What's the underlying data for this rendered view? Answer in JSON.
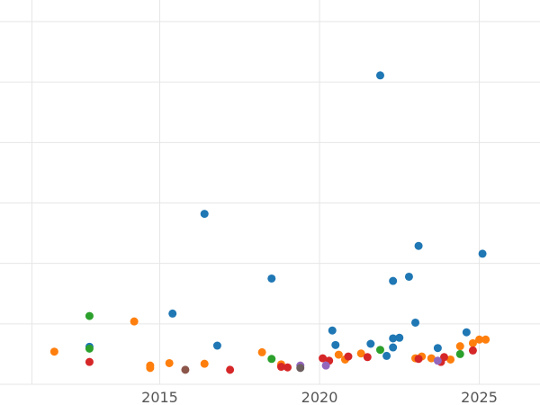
{
  "chart_data": {
    "type": "scatter",
    "title": "",
    "xlabel": "",
    "ylabel": "",
    "x_ticks": [
      2015,
      2020,
      2025
    ],
    "xlim": [
      2010.0,
      2026.9
    ],
    "ylim": [
      0,
      6
    ],
    "y_gridlines": [
      0,
      1,
      2,
      3,
      4,
      5,
      6
    ],
    "grid": true,
    "legend": "none",
    "colors": {
      "blue": "#1f77b4",
      "orange": "#ff7f0e",
      "green": "#2ca02c",
      "red": "#d62728",
      "purple": "#9467bd",
      "brown": "#8c564b"
    },
    "series": [
      {
        "color": "blue",
        "points": [
          {
            "x": 2012.8,
            "y": 0.62
          },
          {
            "x": 2015.4,
            "y": 1.17
          },
          {
            "x": 2016.4,
            "y": 2.82
          },
          {
            "x": 2016.8,
            "y": 0.64
          },
          {
            "x": 2018.5,
            "y": 1.75
          },
          {
            "x": 2020.4,
            "y": 0.89
          },
          {
            "x": 2020.5,
            "y": 0.65
          },
          {
            "x": 2021.6,
            "y": 0.67
          },
          {
            "x": 2021.9,
            "y": 5.11
          },
          {
            "x": 2022.1,
            "y": 0.47
          },
          {
            "x": 2022.3,
            "y": 0.76
          },
          {
            "x": 2022.3,
            "y": 0.61
          },
          {
            "x": 2022.3,
            "y": 1.71
          },
          {
            "x": 2022.5,
            "y": 0.77
          },
          {
            "x": 2022.8,
            "y": 1.78
          },
          {
            "x": 2023.0,
            "y": 1.02
          },
          {
            "x": 2023.1,
            "y": 2.29
          },
          {
            "x": 2023.7,
            "y": 0.6
          },
          {
            "x": 2024.6,
            "y": 0.86
          },
          {
            "x": 2025.1,
            "y": 2.16
          }
        ]
      },
      {
        "color": "orange",
        "points": [
          {
            "x": 2011.7,
            "y": 0.54
          },
          {
            "x": 2014.2,
            "y": 1.04
          },
          {
            "x": 2014.7,
            "y": 0.31
          },
          {
            "x": 2014.7,
            "y": 0.27
          },
          {
            "x": 2015.3,
            "y": 0.35
          },
          {
            "x": 2016.4,
            "y": 0.34
          },
          {
            "x": 2018.2,
            "y": 0.53
          },
          {
            "x": 2018.8,
            "y": 0.33
          },
          {
            "x": 2020.6,
            "y": 0.49
          },
          {
            "x": 2020.8,
            "y": 0.41
          },
          {
            "x": 2021.3,
            "y": 0.51
          },
          {
            "x": 2023.0,
            "y": 0.43
          },
          {
            "x": 2023.2,
            "y": 0.46
          },
          {
            "x": 2023.5,
            "y": 0.43
          },
          {
            "x": 2024.1,
            "y": 0.41
          },
          {
            "x": 2024.4,
            "y": 0.63
          },
          {
            "x": 2024.8,
            "y": 0.68
          },
          {
            "x": 2025.0,
            "y": 0.74
          },
          {
            "x": 2025.2,
            "y": 0.74
          }
        ]
      },
      {
        "color": "green",
        "points": [
          {
            "x": 2012.8,
            "y": 1.13
          },
          {
            "x": 2012.8,
            "y": 0.59
          },
          {
            "x": 2018.5,
            "y": 0.42
          },
          {
            "x": 2021.9,
            "y": 0.57
          },
          {
            "x": 2024.4,
            "y": 0.5
          }
        ]
      },
      {
        "color": "red",
        "points": [
          {
            "x": 2012.8,
            "y": 0.37
          },
          {
            "x": 2017.2,
            "y": 0.24
          },
          {
            "x": 2018.8,
            "y": 0.29
          },
          {
            "x": 2019.0,
            "y": 0.28
          },
          {
            "x": 2020.1,
            "y": 0.43
          },
          {
            "x": 2020.3,
            "y": 0.39
          },
          {
            "x": 2020.9,
            "y": 0.46
          },
          {
            "x": 2021.5,
            "y": 0.45
          },
          {
            "x": 2023.1,
            "y": 0.42
          },
          {
            "x": 2023.8,
            "y": 0.37
          },
          {
            "x": 2023.9,
            "y": 0.45
          },
          {
            "x": 2024.8,
            "y": 0.56
          }
        ]
      },
      {
        "color": "purple",
        "points": [
          {
            "x": 2019.4,
            "y": 0.31
          },
          {
            "x": 2020.2,
            "y": 0.31
          },
          {
            "x": 2023.7,
            "y": 0.39
          }
        ]
      },
      {
        "color": "brown",
        "points": [
          {
            "x": 2015.8,
            "y": 0.24
          }
        ]
      },
      {
        "color": "#6d5f5f",
        "points": [
          {
            "x": 2019.4,
            "y": 0.27
          }
        ]
      }
    ]
  }
}
